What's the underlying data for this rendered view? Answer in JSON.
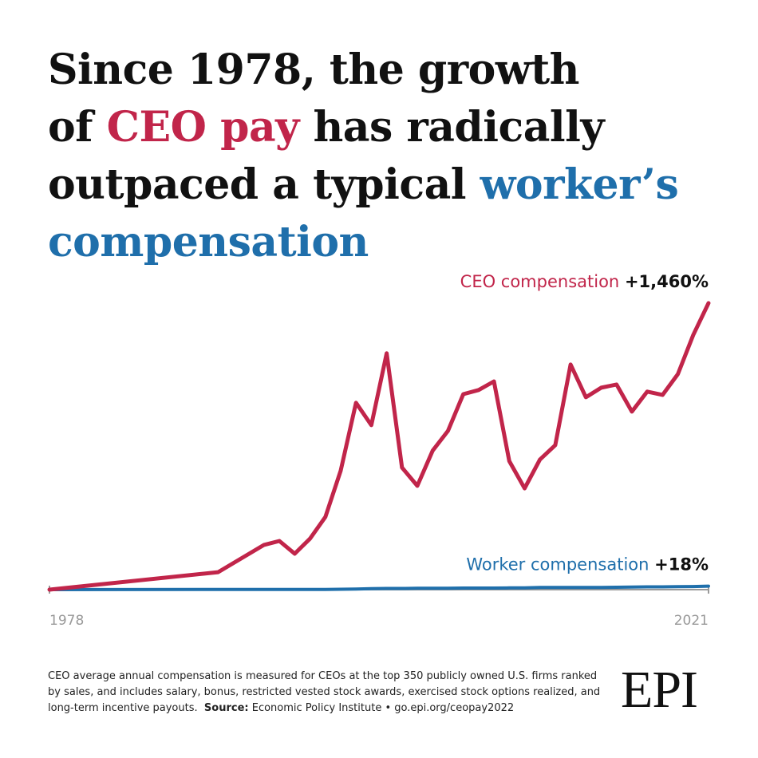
{
  "chart_data": {
    "type": "line",
    "title_lines": [
      [
        {
          "text": "Since 1978, the growth",
          "color": "#111111"
        }
      ],
      [
        {
          "text": "of ",
          "color": "#111111"
        },
        {
          "text": "CEO pay",
          "color": "#c1254a"
        },
        {
          "text": " has radically",
          "color": "#111111"
        }
      ],
      [
        {
          "text": "outpaced a typical ",
          "color": "#111111"
        },
        {
          "text": "worker’s",
          "color": "#1f6fab"
        }
      ],
      [
        {
          "text": "compensation",
          "color": "#1f6fab"
        }
      ]
    ],
    "x": [
      1978,
      1989,
      1992,
      1993,
      1994,
      1995,
      1996,
      1997,
      1998,
      1999,
      2000,
      2001,
      2002,
      2003,
      2004,
      2005,
      2006,
      2007,
      2008,
      2009,
      2010,
      2011,
      2012,
      2013,
      2014,
      2015,
      2016,
      2017,
      2018,
      2019,
      2020,
      2021
    ],
    "xlim": [
      1978,
      2021
    ],
    "xticks": [
      1978,
      2021
    ],
    "ylim": [
      0,
      1500
    ],
    "series": [
      {
        "name": "CEO compensation",
        "end_label": "+1,460%",
        "color": "#c1254a",
        "values": [
          0,
          89,
          228,
          248,
          183,
          260,
          370,
          606,
          952,
          838,
          1204,
          622,
          529,
          708,
          809,
          996,
          1017,
          1061,
          655,
          516,
          663,
          736,
          1147,
          980,
          1029,
          1045,
          907,
          1009,
          992,
          1098,
          1297,
          1460
        ]
      },
      {
        "name": "Worker compensation",
        "end_label": "+18%",
        "color": "#1f6fab",
        "values": [
          0,
          1,
          1,
          1,
          1,
          1,
          1,
          2,
          3,
          5,
          6,
          6,
          7,
          7,
          7,
          8,
          8,
          8,
          9,
          9,
          11,
          11,
          11,
          11,
          11,
          12,
          13,
          14,
          14,
          15,
          16,
          18
        ]
      }
    ],
    "note": "CEO average annual compensation is measured for CEOs at the top 350 publicly owned U.S. firms ranked by sales, and includes salary, bonus, restricted vested stock awards, exercised stock options realized, and long-term incentive payouts.",
    "source_label": "Source:",
    "source": "Economic Policy Institute • go.epi.org/ceopay2022",
    "logo": "EPI"
  }
}
